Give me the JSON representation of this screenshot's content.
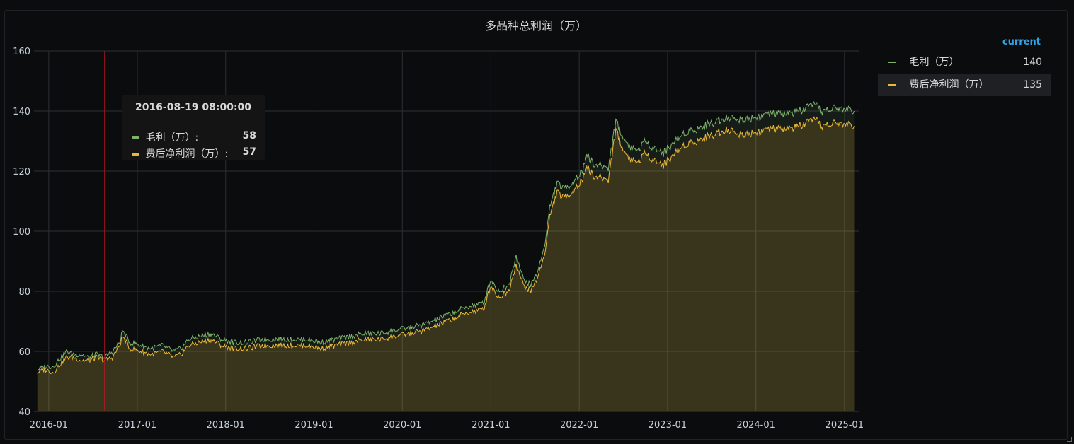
{
  "panel": {
    "title": "多品种总利润（万）"
  },
  "legend": {
    "header": "current",
    "items": [
      {
        "name": "毛利（万）",
        "value": "140",
        "color": "#7eb26d"
      },
      {
        "name": "费后净利润（万）",
        "value": "135",
        "color": "#eab839"
      }
    ]
  },
  "tooltip": {
    "time": "2016-08-19 08:00:00",
    "rows": [
      {
        "label": "毛利（万）:",
        "value": "58"
      },
      {
        "label": "费后净利润（万）:",
        "value": "57"
      }
    ]
  },
  "chart_data": {
    "type": "line",
    "title": "多品种总利润（万）",
    "ylim": [
      40,
      160
    ],
    "y_ticks": [
      "40",
      "60",
      "80",
      "100",
      "120",
      "140",
      "160"
    ],
    "x_ticks": [
      "2016-01",
      "2017-01",
      "2018-01",
      "2019-01",
      "2020-01",
      "2021-01",
      "2022-01",
      "2023-01",
      "2024-01",
      "2025-01"
    ],
    "grid": true,
    "legend_position": "right",
    "cursor_date": "2016-08-19",
    "series": [
      {
        "name": "毛利（万）",
        "color": "#7eb26d",
        "points": [
          [
            "2015-11-15",
            54
          ],
          [
            "2015-12-15",
            55
          ],
          [
            "2016-01-20",
            55
          ],
          [
            "2016-02-20",
            58
          ],
          [
            "2016-03-15",
            60
          ],
          [
            "2016-04-15",
            59
          ],
          [
            "2016-05-15",
            59
          ],
          [
            "2016-06-15",
            58
          ],
          [
            "2016-07-15",
            59
          ],
          [
            "2016-08-19",
            58
          ],
          [
            "2016-09-20",
            60
          ],
          [
            "2016-10-20",
            63
          ],
          [
            "2016-11-01",
            67
          ],
          [
            "2016-12-01",
            63
          ],
          [
            "2017-01-15",
            62
          ],
          [
            "2017-03-01",
            61
          ],
          [
            "2017-04-15",
            62
          ],
          [
            "2017-06-01",
            60
          ],
          [
            "2017-07-01",
            61
          ],
          [
            "2017-08-01",
            64
          ],
          [
            "2017-09-15",
            65
          ],
          [
            "2017-11-01",
            66
          ],
          [
            "2017-12-15",
            64
          ],
          [
            "2018-02-01",
            63
          ],
          [
            "2018-04-01",
            63
          ],
          [
            "2018-06-01",
            64
          ],
          [
            "2018-08-01",
            64
          ],
          [
            "2018-10-01",
            64
          ],
          [
            "2018-12-01",
            64
          ],
          [
            "2019-02-01",
            63
          ],
          [
            "2019-04-01",
            64
          ],
          [
            "2019-06-01",
            65
          ],
          [
            "2019-08-01",
            66
          ],
          [
            "2019-10-01",
            66
          ],
          [
            "2019-12-01",
            67
          ],
          [
            "2020-02-01",
            68
          ],
          [
            "2020-04-01",
            69
          ],
          [
            "2020-06-01",
            71
          ],
          [
            "2020-08-01",
            73
          ],
          [
            "2020-10-01",
            75
          ],
          [
            "2020-12-01",
            76
          ],
          [
            "2021-01-01",
            84
          ],
          [
            "2021-02-01",
            80
          ],
          [
            "2021-03-15",
            82
          ],
          [
            "2021-04-15",
            92
          ],
          [
            "2021-05-15",
            84
          ],
          [
            "2021-06-15",
            82
          ],
          [
            "2021-07-15",
            87
          ],
          [
            "2021-08-15",
            97
          ],
          [
            "2021-09-01",
            108
          ],
          [
            "2021-10-01",
            116
          ],
          [
            "2021-11-01",
            114
          ],
          [
            "2021-12-01",
            116
          ],
          [
            "2022-01-15",
            120
          ],
          [
            "2022-02-01",
            126
          ],
          [
            "2022-03-01",
            122
          ],
          [
            "2022-04-01",
            122
          ],
          [
            "2022-05-01",
            121
          ],
          [
            "2022-06-01",
            137
          ],
          [
            "2022-07-01",
            131
          ],
          [
            "2022-08-01",
            128
          ],
          [
            "2022-09-01",
            127
          ],
          [
            "2022-10-01",
            130
          ],
          [
            "2022-11-01",
            128
          ],
          [
            "2022-12-15",
            126
          ],
          [
            "2023-02-01",
            130
          ],
          [
            "2023-03-15",
            133
          ],
          [
            "2023-05-01",
            134
          ],
          [
            "2023-07-01",
            136
          ],
          [
            "2023-09-01",
            138
          ],
          [
            "2023-11-01",
            137
          ],
          [
            "2024-01-01",
            138
          ],
          [
            "2024-03-01",
            139
          ],
          [
            "2024-05-01",
            139
          ],
          [
            "2024-07-01",
            140
          ],
          [
            "2024-09-01",
            142
          ],
          [
            "2024-10-01",
            140
          ],
          [
            "2024-12-01",
            141
          ],
          [
            "2025-02-10",
            140
          ]
        ]
      },
      {
        "name": "费后净利润（万）",
        "color": "#eab839",
        "points": [
          [
            "2015-11-15",
            53
          ],
          [
            "2015-12-15",
            54
          ],
          [
            "2016-01-20",
            53
          ],
          [
            "2016-02-20",
            56
          ],
          [
            "2016-03-15",
            58
          ],
          [
            "2016-04-15",
            58
          ],
          [
            "2016-05-15",
            57
          ],
          [
            "2016-06-15",
            57
          ],
          [
            "2016-07-15",
            58
          ],
          [
            "2016-08-19",
            57
          ],
          [
            "2016-09-20",
            58
          ],
          [
            "2016-10-20",
            62
          ],
          [
            "2016-11-01",
            65
          ],
          [
            "2016-12-01",
            61
          ],
          [
            "2017-01-15",
            60
          ],
          [
            "2017-03-01",
            59
          ],
          [
            "2017-04-15",
            60
          ],
          [
            "2017-06-01",
            58
          ],
          [
            "2017-07-01",
            59
          ],
          [
            "2017-08-01",
            62
          ],
          [
            "2017-09-15",
            63
          ],
          [
            "2017-11-01",
            64
          ],
          [
            "2017-12-15",
            62
          ],
          [
            "2018-02-01",
            61
          ],
          [
            "2018-04-01",
            61
          ],
          [
            "2018-06-01",
            62
          ],
          [
            "2018-08-01",
            62
          ],
          [
            "2018-10-01",
            62
          ],
          [
            "2018-12-01",
            62
          ],
          [
            "2019-02-01",
            61
          ],
          [
            "2019-04-01",
            62
          ],
          [
            "2019-06-01",
            63
          ],
          [
            "2019-08-01",
            64
          ],
          [
            "2019-10-01",
            64
          ],
          [
            "2019-12-01",
            65
          ],
          [
            "2020-02-01",
            66
          ],
          [
            "2020-04-01",
            67
          ],
          [
            "2020-06-01",
            69
          ],
          [
            "2020-08-01",
            71
          ],
          [
            "2020-10-01",
            73
          ],
          [
            "2020-12-01",
            74
          ],
          [
            "2021-01-01",
            82
          ],
          [
            "2021-02-01",
            78
          ],
          [
            "2021-03-15",
            80
          ],
          [
            "2021-04-15",
            89
          ],
          [
            "2021-05-15",
            82
          ],
          [
            "2021-06-15",
            80
          ],
          [
            "2021-07-15",
            85
          ],
          [
            "2021-08-15",
            94
          ],
          [
            "2021-09-01",
            105
          ],
          [
            "2021-10-01",
            113
          ],
          [
            "2021-11-01",
            111
          ],
          [
            "2021-12-01",
            113
          ],
          [
            "2022-01-15",
            117
          ],
          [
            "2022-02-01",
            122
          ],
          [
            "2022-03-01",
            118
          ],
          [
            "2022-04-01",
            118
          ],
          [
            "2022-05-01",
            117
          ],
          [
            "2022-06-01",
            134
          ],
          [
            "2022-07-01",
            127
          ],
          [
            "2022-08-01",
            124
          ],
          [
            "2022-09-01",
            123
          ],
          [
            "2022-10-01",
            126
          ],
          [
            "2022-11-01",
            124
          ],
          [
            "2022-12-15",
            122
          ],
          [
            "2023-02-01",
            126
          ],
          [
            "2023-03-15",
            129
          ],
          [
            "2023-05-01",
            130
          ],
          [
            "2023-07-01",
            132
          ],
          [
            "2023-09-01",
            134
          ],
          [
            "2023-11-01",
            132
          ],
          [
            "2024-01-01",
            133
          ],
          [
            "2024-03-01",
            134
          ],
          [
            "2024-05-01",
            134
          ],
          [
            "2024-07-01",
            135
          ],
          [
            "2024-09-01",
            137
          ],
          [
            "2024-10-01",
            135
          ],
          [
            "2024-12-01",
            136
          ],
          [
            "2025-02-10",
            135
          ]
        ]
      }
    ]
  }
}
